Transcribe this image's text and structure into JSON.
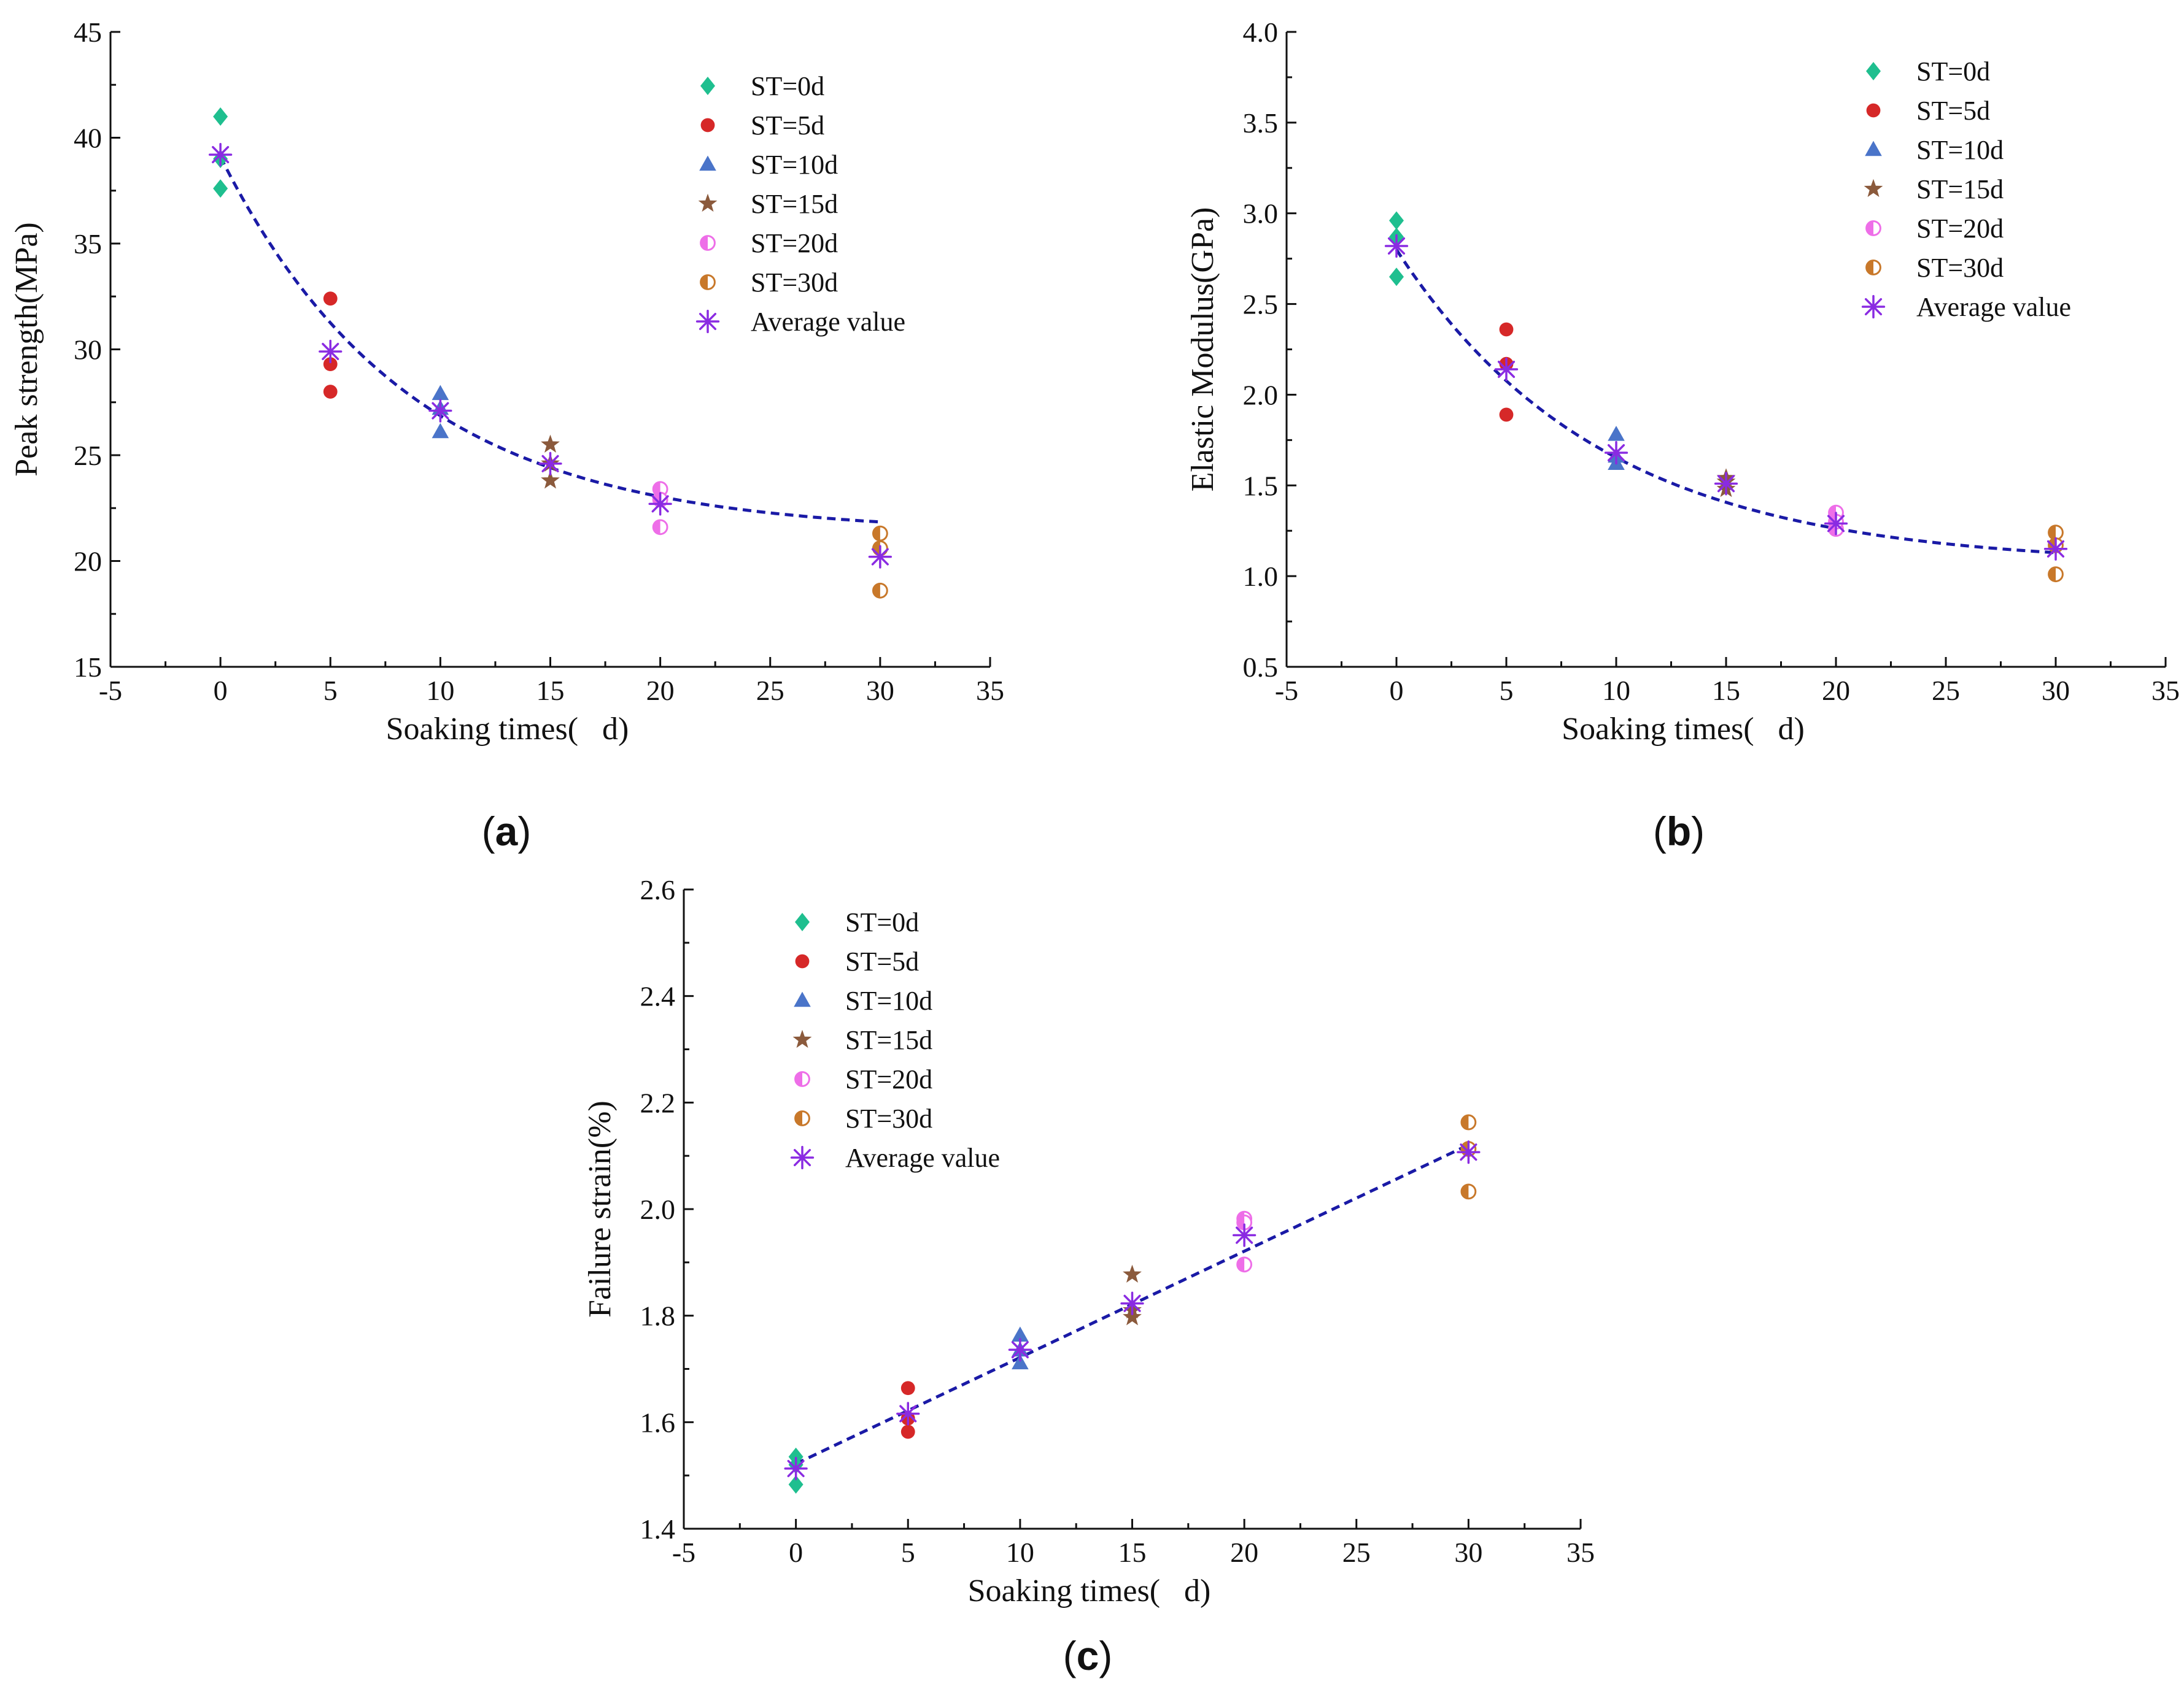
{
  "colors": {
    "ST=0d": "#1fbf8f",
    "ST=5d": "#d62828",
    "ST=10d": "#4a74c9",
    "ST=15d": "#8b5a3c",
    "ST=20d": "#ee6ee8",
    "ST=30d": "#c8782a",
    "Average value": "#8a2be2",
    "fit": "#1a1aa6"
  },
  "chart_data": [
    {
      "id": "a",
      "type": "scatter",
      "panel_label": "(a)",
      "xlabel": "Soaking times(   d)",
      "ylabel": "Peak strength(MPa)",
      "xlim": [
        -5,
        35
      ],
      "ylim": [
        15,
        45
      ],
      "xticks": [
        -5,
        0,
        5,
        10,
        15,
        20,
        25,
        30,
        35
      ],
      "yticks": [
        15,
        20,
        25,
        30,
        35,
        40,
        45
      ],
      "ytick_labels": [
        "15",
        "20",
        "25",
        "30",
        "35",
        "40",
        "45"
      ],
      "legend_position": "top-right",
      "series": [
        {
          "name": "ST=0d",
          "marker": "diamond",
          "points": [
            [
              0,
              41.0
            ],
            [
              0,
              37.6
            ],
            [
              0,
              39.0
            ]
          ]
        },
        {
          "name": "ST=5d",
          "marker": "circle",
          "points": [
            [
              5,
              32.4
            ],
            [
              5,
              29.3
            ],
            [
              5,
              28.0
            ]
          ]
        },
        {
          "name": "ST=10d",
          "marker": "triangle",
          "points": [
            [
              10,
              27.9
            ],
            [
              10,
              26.1
            ],
            [
              10,
              27.2
            ]
          ]
        },
        {
          "name": "ST=15d",
          "marker": "star",
          "points": [
            [
              15,
              25.5
            ],
            [
              15,
              23.8
            ],
            [
              15,
              24.6
            ]
          ]
        },
        {
          "name": "ST=20d",
          "marker": "half-circle",
          "points": [
            [
              20,
              23.4
            ],
            [
              20,
              21.6
            ],
            [
              20,
              22.9
            ]
          ]
        },
        {
          "name": "ST=30d",
          "marker": "half-circle",
          "points": [
            [
              30,
              21.3
            ],
            [
              30,
              20.6
            ],
            [
              30,
              18.6
            ]
          ]
        },
        {
          "name": "Average value",
          "marker": "asterisk",
          "points": [
            [
              0,
              39.2
            ],
            [
              5,
              29.9
            ],
            [
              10,
              27.1
            ],
            [
              15,
              24.6
            ],
            [
              20,
              22.7
            ],
            [
              30,
              20.2
            ]
          ]
        }
      ],
      "fit": {
        "form": "exponential",
        "a": 21.3,
        "b": 17.8,
        "c": 8.6,
        "x_range": [
          0,
          30
        ]
      }
    },
    {
      "id": "b",
      "type": "scatter",
      "panel_label": "(b)",
      "xlabel": "Soaking times(   d)",
      "ylabel": "Elastic Modulus(GPa)",
      "xlim": [
        -5,
        35
      ],
      "ylim": [
        0.5,
        4.0
      ],
      "xticks": [
        -5,
        0,
        5,
        10,
        15,
        20,
        25,
        30,
        35
      ],
      "yticks": [
        0.5,
        1.0,
        1.5,
        2.0,
        2.5,
        3.0,
        3.5,
        4.0
      ],
      "ytick_labels": [
        "0.5",
        "1.0",
        "1.5",
        "2.0",
        "2.5",
        "3.0",
        "3.5",
        "4.0"
      ],
      "legend_position": "top-right",
      "series": [
        {
          "name": "ST=0d",
          "marker": "diamond",
          "points": [
            [
              0,
              2.96
            ],
            [
              0,
              2.87
            ],
            [
              0,
              2.65
            ]
          ]
        },
        {
          "name": "ST=5d",
          "marker": "circle",
          "points": [
            [
              5,
              2.36
            ],
            [
              5,
              2.17
            ],
            [
              5,
              1.89
            ]
          ]
        },
        {
          "name": "ST=10d",
          "marker": "triangle",
          "points": [
            [
              10,
              1.78
            ],
            [
              10,
              1.62
            ],
            [
              10,
              1.66
            ]
          ]
        },
        {
          "name": "ST=15d",
          "marker": "star",
          "points": [
            [
              15,
              1.54
            ],
            [
              15,
              1.48
            ],
            [
              15,
              1.52
            ]
          ]
        },
        {
          "name": "ST=20d",
          "marker": "half-circle",
          "points": [
            [
              20,
              1.35
            ],
            [
              20,
              1.26
            ],
            [
              20,
              1.3
            ]
          ]
        },
        {
          "name": "ST=30d",
          "marker": "half-circle",
          "points": [
            [
              30,
              1.24
            ],
            [
              30,
              1.17
            ],
            [
              30,
              1.01
            ]
          ]
        },
        {
          "name": "Average value",
          "marker": "asterisk",
          "points": [
            [
              0,
              2.82
            ],
            [
              5,
              2.14
            ],
            [
              10,
              1.68
            ],
            [
              15,
              1.51
            ],
            [
              20,
              1.29
            ],
            [
              30,
              1.15
            ]
          ]
        }
      ],
      "fit": {
        "form": "exponential",
        "a": 1.06,
        "b": 1.74,
        "c": 9.3,
        "x_range": [
          0,
          30
        ]
      }
    },
    {
      "id": "c",
      "type": "scatter",
      "panel_label": "(c)",
      "xlabel": "Soaking times(   d)",
      "ylabel": "Failure strain(%)",
      "xlim": [
        -5,
        35
      ],
      "ylim": [
        1.4,
        2.6
      ],
      "xticks": [
        -5,
        0,
        5,
        10,
        15,
        20,
        25,
        30,
        35
      ],
      "yticks": [
        1.4,
        1.6,
        1.8,
        2.0,
        2.2,
        2.4,
        2.6
      ],
      "ytick_labels": [
        "1.4",
        "1.6",
        "1.8",
        "2.0",
        "2.2",
        "2.4",
        "2.6"
      ],
      "legend_position": "top-left",
      "series": [
        {
          "name": "ST=0d",
          "marker": "diamond",
          "points": [
            [
              0,
              1.535
            ],
            [
              0,
              1.483
            ],
            [
              0,
              1.52
            ]
          ]
        },
        {
          "name": "ST=5d",
          "marker": "circle",
          "points": [
            [
              5,
              1.664
            ],
            [
              5,
              1.607
            ],
            [
              5,
              1.582
            ]
          ]
        },
        {
          "name": "ST=10d",
          "marker": "triangle",
          "points": [
            [
              10,
              1.763
            ],
            [
              10,
              1.711
            ],
            [
              10,
              1.735
            ]
          ]
        },
        {
          "name": "ST=15d",
          "marker": "star",
          "points": [
            [
              15,
              1.877
            ],
            [
              15,
              1.797
            ],
            [
              15,
              1.81
            ]
          ]
        },
        {
          "name": "ST=20d",
          "marker": "half-circle",
          "points": [
            [
              20,
              1.982
            ],
            [
              20,
              1.896
            ],
            [
              20,
              1.975
            ]
          ]
        },
        {
          "name": "ST=30d",
          "marker": "half-circle",
          "points": [
            [
              30,
              2.163
            ],
            [
              30,
              2.113
            ],
            [
              30,
              2.033
            ]
          ]
        },
        {
          "name": "Average value",
          "marker": "asterisk",
          "points": [
            [
              0,
              1.513
            ],
            [
              5,
              1.616
            ],
            [
              10,
              1.736
            ],
            [
              15,
              1.823
            ],
            [
              20,
              1.951
            ],
            [
              30,
              2.107
            ]
          ]
        }
      ],
      "fit": {
        "form": "linear",
        "slope": 0.01995,
        "intercept": 1.522,
        "x_range": [
          0,
          30
        ]
      }
    }
  ]
}
